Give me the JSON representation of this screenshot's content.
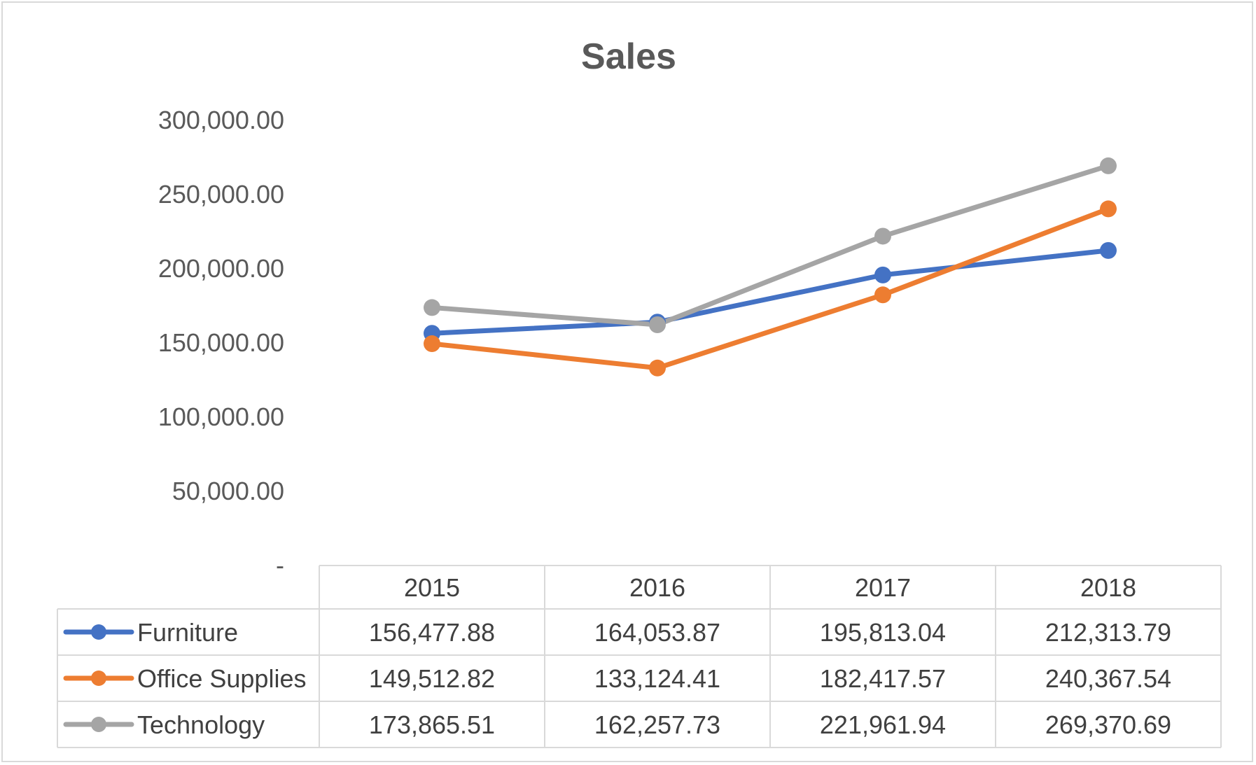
{
  "chart_data": {
    "type": "line",
    "title": "Sales",
    "categories": [
      "2015",
      "2016",
      "2017",
      "2018"
    ],
    "ylim": [
      0,
      300000
    ],
    "yticks": [
      {
        "value": 0,
        "label": "-"
      },
      {
        "value": 50000,
        "label": "50,000.00"
      },
      {
        "value": 100000,
        "label": "100,000.00"
      },
      {
        "value": 150000,
        "label": "150,000.00"
      },
      {
        "value": 200000,
        "label": "200,000.00"
      },
      {
        "value": 250000,
        "label": "250,000.00"
      },
      {
        "value": 300000,
        "label": "300,000.00"
      }
    ],
    "grid": false,
    "legend": "data-table",
    "series": [
      {
        "name": "Furniture",
        "color": "#4472c4",
        "values": [
          156477.88,
          164053.87,
          195813.04,
          212313.79
        ],
        "labels": [
          "156,477.88",
          "164,053.87",
          "195,813.04",
          "212,313.79"
        ]
      },
      {
        "name": "Office Supplies",
        "color": "#ed7d31",
        "values": [
          149512.82,
          133124.41,
          182417.57,
          240367.54
        ],
        "labels": [
          "149,512.82",
          "133,124.41",
          "182,417.57",
          "240,367.54"
        ]
      },
      {
        "name": "Technology",
        "color": "#a5a5a5",
        "values": [
          173865.51,
          162257.73,
          221961.94,
          269370.69
        ],
        "labels": [
          "173,865.51",
          "162,257.73",
          "221,961.94",
          "269,370.69"
        ]
      }
    ]
  }
}
